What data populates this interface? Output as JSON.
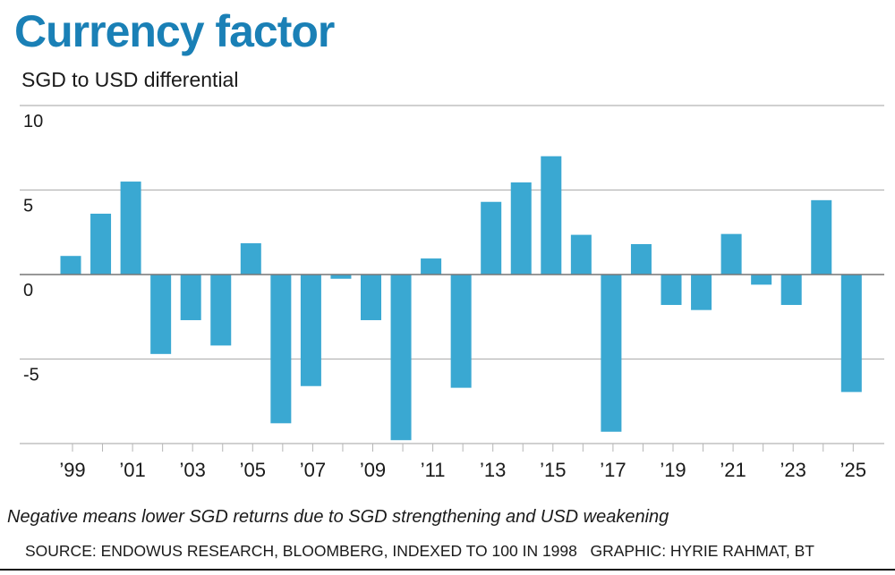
{
  "header": {
    "title": "Currency factor",
    "subtitle": "SGD to USD differential"
  },
  "footer": {
    "note": "Negative means lower SGD returns due to SGD strengthening and USD weakening",
    "source": "SOURCE: ENDOWUS RESEARCH, BLOOMBERG, INDEXED TO 100 IN 1998   GRAPHIC: HYRIE RAHMAT, BT"
  },
  "colors": {
    "title": "#1a80b6",
    "bar": "#3aa8d2",
    "grid": "#b5b5b5",
    "zero_line": "#777777"
  },
  "chart_data": {
    "type": "bar",
    "title": "Currency factor",
    "subtitle": "SGD to USD differential",
    "xlabel": "",
    "ylabel": "",
    "ylim": [
      -10,
      10
    ],
    "yticks": [
      10,
      5,
      0,
      -5
    ],
    "grid": true,
    "legend": "none",
    "categories": [
      "1999",
      "2000",
      "2001",
      "2002",
      "2003",
      "2004",
      "2005",
      "2006",
      "2007",
      "2008",
      "2009",
      "2010",
      "2011",
      "2012",
      "2013",
      "2014",
      "2015",
      "2016",
      "2017",
      "2018",
      "2019",
      "2020",
      "2021",
      "2022",
      "2023",
      "2024",
      "2025"
    ],
    "xtick_labels": [
      "’99",
      "",
      "’01",
      "",
      "’03",
      "",
      "’05",
      "",
      "’07",
      "",
      "’09",
      "",
      "’11",
      "",
      "’13",
      "",
      "’15",
      "",
      "’17",
      "",
      "’19",
      "",
      "’21",
      "",
      "’23",
      "",
      "’25"
    ],
    "values": [
      1.1,
      3.6,
      5.5,
      -4.7,
      -2.7,
      -4.2,
      1.85,
      -8.8,
      -6.6,
      -0.25,
      -2.7,
      -9.8,
      0.95,
      -6.7,
      4.3,
      5.45,
      7.0,
      2.35,
      -9.3,
      1.8,
      -1.8,
      -2.1,
      2.4,
      -0.6,
      -1.8,
      4.4,
      -6.95
    ]
  }
}
